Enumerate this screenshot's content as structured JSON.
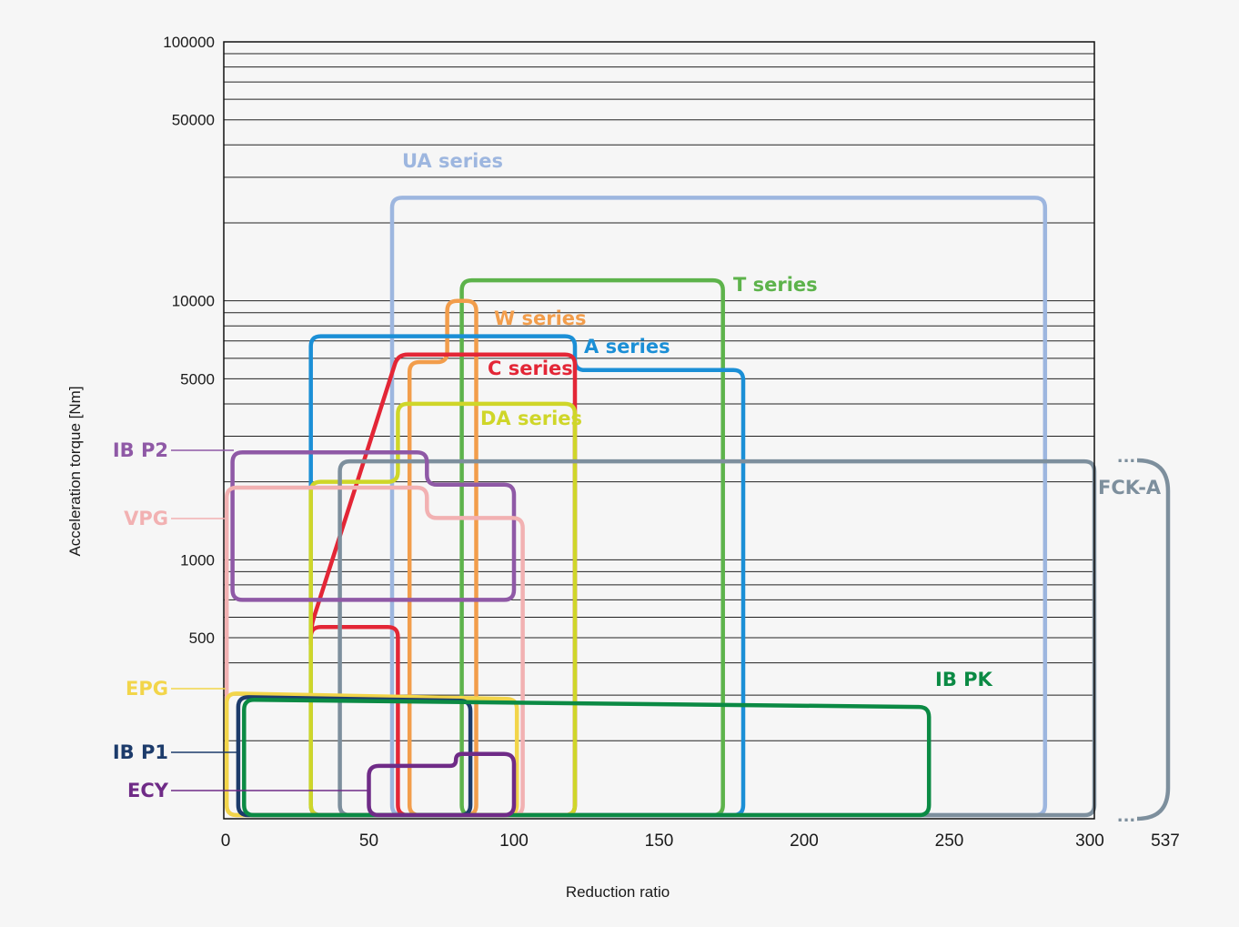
{
  "chart_data": {
    "type": "area",
    "title": "",
    "xlabel": "Reduction ratio",
    "ylabel": "Acceleration torque [Nm]",
    "x_ticks": [
      "0",
      "50",
      "100",
      "150",
      "200",
      "250",
      "300",
      "537"
    ],
    "y_ticks": [
      "500",
      "1000",
      "5000",
      "10000",
      "50000",
      "100000"
    ],
    "xlim": [
      0,
      300
    ],
    "ylim": [
      100,
      100000
    ],
    "y_scale": "log",
    "grid": "horizontal",
    "series": [
      {
        "name": "UA series",
        "color": "#9db6df",
        "ratio": [
          57,
          283
        ],
        "torque": [
          100,
          25000
        ]
      },
      {
        "name": "T series",
        "color": "#5db34b",
        "ratio": [
          81,
          172
        ],
        "torque": [
          100,
          12000
        ]
      },
      {
        "name": "W series",
        "color": "#f29d4b",
        "ratio": [
          64,
          88
        ],
        "torque": [
          100,
          10000
        ]
      },
      {
        "name": "A series",
        "color": "#1b8fd6",
        "ratio": [
          30,
          179
        ],
        "torque": [
          100,
          7000
        ]
      },
      {
        "name": "C series",
        "color": "#e32636",
        "ratio": [
          30,
          122
        ],
        "torque": [
          500,
          6000
        ]
      },
      {
        "name": "DA series",
        "color": "#cfd629",
        "ratio": [
          30,
          122
        ],
        "torque": [
          100,
          4000
        ]
      },
      {
        "name": "FCK-A",
        "color": "#7d8f9d",
        "ratio": [
          40,
          537
        ],
        "torque": [
          100,
          2400
        ]
      },
      {
        "name": "IB P2",
        "color": "#8f59a6",
        "ratio": [
          3,
          100
        ],
        "torque": [
          700,
          2600
        ]
      },
      {
        "name": "VPG",
        "color": "#f2b1b2",
        "ratio": [
          1,
          103
        ],
        "torque": [
          100,
          1900
        ]
      },
      {
        "name": "EPG",
        "color": "#f2d54a",
        "ratio": [
          1,
          101
        ],
        "torque": [
          100,
          300
        ]
      },
      {
        "name": "IB P1",
        "color": "#1c3b6b",
        "ratio": [
          5,
          85
        ],
        "torque": [
          100,
          300
        ]
      },
      {
        "name": "IB PK",
        "color": "#0b8a44",
        "ratio": [
          7,
          243
        ],
        "torque": [
          100,
          300
        ]
      },
      {
        "name": "ECY",
        "color": "#6f2b87",
        "ratio": [
          50,
          100
        ],
        "torque": [
          100,
          180
        ]
      }
    ]
  }
}
